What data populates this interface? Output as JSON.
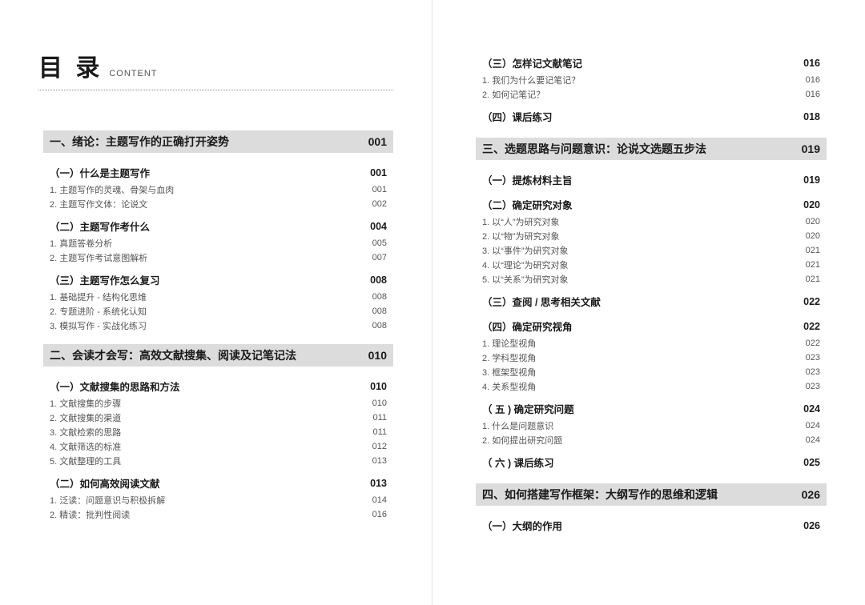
{
  "header": {
    "title_zh": "目 录",
    "title_en": "CONTENT"
  },
  "left": [
    {
      "type": "chapter",
      "title": "一、绪论：主题写作的正确打开姿势",
      "page": "001"
    },
    {
      "type": "section",
      "title": "（一）什么是主题写作",
      "page": "001"
    },
    {
      "type": "item",
      "title": "1. 主题写作的灵魂、骨架与血肉",
      "page": "001"
    },
    {
      "type": "item",
      "title": "2. 主题写作文体：论说文",
      "page": "002"
    },
    {
      "type": "section",
      "title": "（二）主题写作考什么",
      "page": "004"
    },
    {
      "type": "item",
      "title": "1. 真题答卷分析",
      "page": "005"
    },
    {
      "type": "item",
      "title": "2. 主题写作考试意图解析",
      "page": "007"
    },
    {
      "type": "section",
      "title": "（三）主题写作怎么复习",
      "page": "008"
    },
    {
      "type": "item",
      "title": "1. 基础提升 - 结构化思维",
      "page": "008"
    },
    {
      "type": "item",
      "title": "2. 专题进阶 - 系统化认知",
      "page": "008"
    },
    {
      "type": "item",
      "title": "3. 模拟写作 - 实战化练习",
      "page": "008"
    },
    {
      "type": "chapter",
      "title": "二、会读才会写：高效文献搜集、阅读及记笔记法",
      "page": "010"
    },
    {
      "type": "section",
      "title": "（一）文献搜集的思路和方法",
      "page": "010"
    },
    {
      "type": "item",
      "title": "1. 文献搜集的步骤",
      "page": "010"
    },
    {
      "type": "item",
      "title": "2. 文献搜集的渠道",
      "page": "011"
    },
    {
      "type": "item",
      "title": "3. 文献检索的思路",
      "page": "011"
    },
    {
      "type": "item",
      "title": "4. 文献筛选的标准",
      "page": "012"
    },
    {
      "type": "item",
      "title": "5. 文献整理的工具",
      "page": "013"
    },
    {
      "type": "section",
      "title": "（二）如何高效阅读文献",
      "page": "013"
    },
    {
      "type": "item",
      "title": "1. 泛读：问题意识与积极拆解",
      "page": "014"
    },
    {
      "type": "item",
      "title": "2. 精读：批判性阅读",
      "page": "016"
    }
  ],
  "right": [
    {
      "type": "section",
      "title": "（三）怎样记文献笔记",
      "page": "016"
    },
    {
      "type": "item",
      "title": "1. 我们为什么要记笔记？",
      "page": "016"
    },
    {
      "type": "item",
      "title": "2. 如何记笔记？",
      "page": "016"
    },
    {
      "type": "section",
      "title": "（四）课后练习",
      "page": "018"
    },
    {
      "type": "chapter",
      "title": "三、选题思路与问题意识：论说文选题五步法",
      "page": "019"
    },
    {
      "type": "section",
      "title": "（一）提炼材料主旨",
      "page": "019"
    },
    {
      "type": "section",
      "title": "（二）确定研究对象",
      "page": "020"
    },
    {
      "type": "item",
      "title": "1. 以“人”为研究对象",
      "page": "020"
    },
    {
      "type": "item",
      "title": "2. 以“物”为研究对象",
      "page": "020"
    },
    {
      "type": "item",
      "title": "3. 以“事件”为研究对象",
      "page": "021"
    },
    {
      "type": "item",
      "title": "4. 以“理论”为研究对象",
      "page": "021"
    },
    {
      "type": "item",
      "title": "5. 以“关系”为研究对象",
      "page": "021"
    },
    {
      "type": "section",
      "title": "（三）查阅 / 思考相关文献",
      "page": "022"
    },
    {
      "type": "section",
      "title": "（四）确定研究视角",
      "page": "022"
    },
    {
      "type": "item",
      "title": "1. 理论型视角",
      "page": "022"
    },
    {
      "type": "item",
      "title": "2. 学科型视角",
      "page": "023"
    },
    {
      "type": "item",
      "title": "3. 框架型视角",
      "page": "023"
    },
    {
      "type": "item",
      "title": "4. 关系型视角",
      "page": "023"
    },
    {
      "type": "section",
      "title": "（ 五 ) 确定研究问题",
      "page": "024"
    },
    {
      "type": "item",
      "title": "1. 什么是问题意识",
      "page": "024"
    },
    {
      "type": "item",
      "title": "2. 如何提出研究问题",
      "page": "024"
    },
    {
      "type": "section",
      "title": "（ 六 ) 课后练习",
      "page": "025"
    },
    {
      "type": "chapter",
      "title": "四、如何搭建写作框架：大纲写作的思维和逻辑",
      "page": "026"
    },
    {
      "type": "section",
      "title": "（一）大纲的作用",
      "page": "026"
    }
  ]
}
